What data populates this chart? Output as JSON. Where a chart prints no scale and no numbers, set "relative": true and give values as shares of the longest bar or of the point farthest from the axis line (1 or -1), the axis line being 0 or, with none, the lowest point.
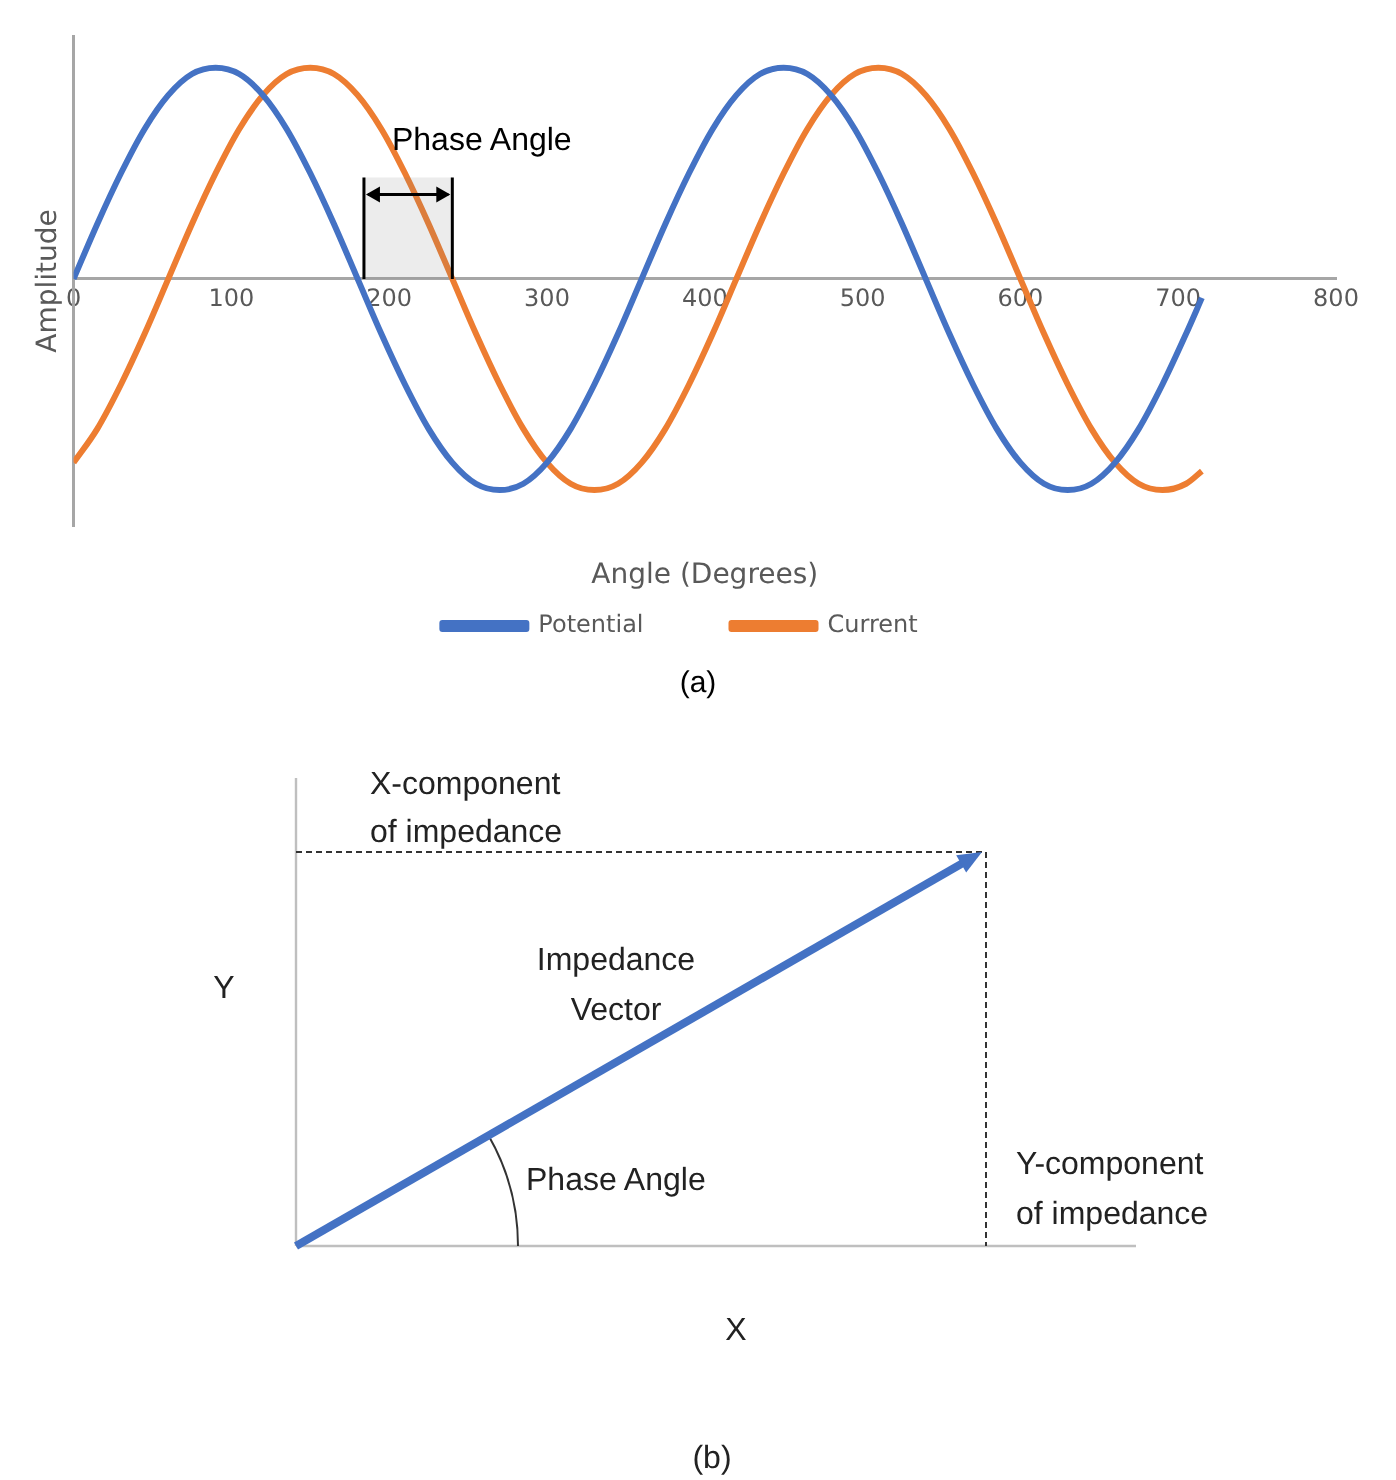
{
  "chart_data": [
    {
      "type": "line",
      "xlabel": "Angle (Degrees)",
      "ylabel": "Amplitude",
      "relative": true,
      "xlim": [
        0,
        800
      ],
      "xticks": [
        0,
        100,
        200,
        300,
        400,
        500,
        600,
        700,
        800
      ],
      "grid": false,
      "legend": "bottom",
      "marker": "none",
      "line_style": "solid",
      "bands": [
        {
          "axis": "x",
          "from": 184,
          "to": 240,
          "label": "Phase Angle"
        }
      ],
      "annotations": [
        "(a)"
      ],
      "x": [
        0,
        15,
        30,
        45,
        60,
        75,
        90,
        105,
        120,
        135,
        150,
        165,
        180,
        195,
        210,
        225,
        240,
        255,
        270,
        285,
        300,
        315,
        330,
        345,
        360,
        375,
        390,
        405,
        420,
        435,
        450,
        465,
        480,
        495,
        510,
        525,
        540,
        555,
        570,
        585,
        600,
        615,
        630,
        645,
        660,
        675,
        690,
        705,
        715
      ],
      "series": [
        {
          "name": "Potential",
          "color": "#4472c4",
          "values": [
            0,
            0.26,
            0.5,
            0.71,
            0.87,
            0.97,
            1,
            0.97,
            0.87,
            0.71,
            0.5,
            0.26,
            0,
            -0.26,
            -0.5,
            -0.71,
            -0.87,
            -0.97,
            -1,
            -0.97,
            -0.87,
            -0.71,
            -0.5,
            -0.26,
            0,
            0.26,
            0.5,
            0.71,
            0.87,
            0.97,
            1,
            0.97,
            0.87,
            0.71,
            0.5,
            0.26,
            0,
            -0.26,
            -0.5,
            -0.71,
            -0.87,
            -0.97,
            -1,
            -0.97,
            -0.87,
            -0.71,
            -0.5,
            -0.26,
            -0.09
          ]
        },
        {
          "name": "Current",
          "color": "#ed7d31",
          "values": [
            -0.87,
            -0.71,
            -0.5,
            -0.26,
            0,
            0.26,
            0.5,
            0.71,
            0.87,
            0.97,
            1,
            0.97,
            0.87,
            0.71,
            0.5,
            0.26,
            0,
            -0.26,
            -0.5,
            -0.71,
            -0.87,
            -0.97,
            -1,
            -0.97,
            -0.87,
            -0.71,
            -0.5,
            -0.26,
            0,
            0.26,
            0.5,
            0.71,
            0.87,
            0.97,
            1,
            0.97,
            0.87,
            0.71,
            0.5,
            0.26,
            0,
            -0.26,
            -0.5,
            -0.71,
            -0.87,
            -0.97,
            -1,
            -0.97,
            -0.91
          ]
        }
      ]
    },
    {
      "type": "other",
      "xlabel": "X",
      "ylabel": "Y",
      "annotations": [
        "X-component of impedance",
        "Impedance Vector",
        "Phase Angle",
        "Y-component of impedance",
        "(b)"
      ]
    }
  ]
}
